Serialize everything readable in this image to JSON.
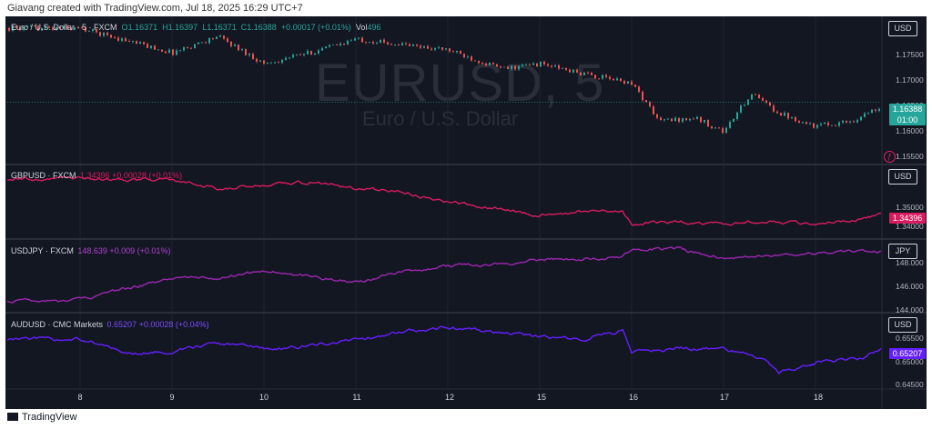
{
  "header": {
    "credit": "Giavang created with TradingView.com, Jul 18, 2025 16:29 UTC+7"
  },
  "watermark": {
    "symbol": "EURUSD, 5",
    "description": "Euro / U.S. Dollar"
  },
  "footer": {
    "brand": "TradingView"
  },
  "colors": {
    "background": "#131722",
    "up": "#26a69a",
    "down": "#ef5350",
    "gbp": "#d81b60",
    "jpy": "#9c27b0",
    "aud": "#651fff",
    "grid": "#1f2330"
  },
  "panes": [
    {
      "label_prefix": "Euro / U.S. Dollar · 5 · FXCM",
      "ohlc": {
        "o": "1.16371",
        "h": "1.16397",
        "l": "1.16371",
        "c": "1.16388",
        "chg": "+0.00017 (+0.01%)",
        "vol": "496"
      },
      "unit": "USD",
      "price_tag": "1.16388",
      "time_tag": "01:00",
      "ticks": [
        "1.17500",
        "1.17000",
        "1.16500",
        "1.16000",
        "1.15500"
      ]
    },
    {
      "label_prefix": "GBPUSD · FXCM",
      "value": "1.34396 +0.00028 (+0.01%)",
      "unit": "USD",
      "price_tag": "1.34396",
      "ticks": [
        "1.35000",
        "1.34000"
      ]
    },
    {
      "label_prefix": "USDJPY · FXCM",
      "value": "148.639 +0.009 (+0.01%)",
      "unit": "JPY",
      "price_tag": "",
      "ticks": [
        "148.000",
        "146.000",
        "144.000"
      ]
    },
    {
      "label_prefix": "AUDUSD · CMC Markets",
      "value": "0.65207 +0.00028 (+0.04%)",
      "unit": "USD",
      "price_tag": "0.65207",
      "ticks": [
        "0.65500",
        "0.65000",
        "0.64500"
      ]
    }
  ],
  "chart_data": [
    {
      "type": "candlestick",
      "title": "Euro / U.S. Dollar · 5 · FXCM",
      "x_ticks": [
        "8",
        "9",
        "10",
        "11",
        "12",
        "15",
        "16",
        "17",
        "18"
      ],
      "ylim": [
        1.153,
        1.179
      ],
      "y_ticks": [
        1.175,
        1.17,
        1.165,
        1.16,
        1.155
      ],
      "x": [
        0,
        1,
        1.5,
        2,
        2.5,
        3,
        4,
        4.6,
        5,
        5.5,
        6,
        6.3,
        6.7,
        7,
        7.3,
        7.6,
        8,
        8.4,
        8.8
      ],
      "values": [
        1.1775,
        1.173,
        1.176,
        1.171,
        1.173,
        1.1755,
        1.1735,
        1.17,
        1.171,
        1.169,
        1.1675,
        1.1605,
        1.161,
        1.1585,
        1.1655,
        1.162,
        1.1595,
        1.1605,
        1.1639
      ]
    },
    {
      "type": "line",
      "title": "GBPUSD · FXCM",
      "x_ticks": [
        "8",
        "9",
        "10",
        "11",
        "12",
        "15",
        "16",
        "17",
        "18"
      ],
      "ylim": [
        1.337,
        1.358
      ],
      "y_ticks": [
        1.35,
        1.34
      ],
      "x": [
        0,
        1,
        1.5,
        2,
        2.5,
        3,
        3.5,
        4,
        4.5,
        5,
        5.5,
        5.9,
        6,
        6.5,
        7,
        7.4,
        8,
        8.5,
        8.8
      ],
      "values": [
        1.3545,
        1.354,
        1.3515,
        1.3525,
        1.3535,
        1.3515,
        1.3505,
        1.3475,
        1.3455,
        1.3435,
        1.3445,
        1.3445,
        1.3405,
        1.3415,
        1.3405,
        1.3415,
        1.3405,
        1.3425,
        1.344
      ]
    },
    {
      "type": "line",
      "title": "USDJPY · FXCM",
      "x_ticks": [
        "8",
        "9",
        "10",
        "11",
        "12",
        "15",
        "16",
        "17",
        "18"
      ],
      "ylim": [
        143.8,
        149.4
      ],
      "y_ticks": [
        148,
        146,
        144
      ],
      "x": [
        0,
        0.5,
        1,
        1.5,
        2,
        2.5,
        3,
        3.5,
        4,
        4.5,
        5,
        5.5,
        5.9,
        6,
        6.5,
        7,
        7.4,
        8,
        8.5,
        8.8
      ],
      "values": [
        144.6,
        145.6,
        146.3,
        146.4,
        147.0,
        146.6,
        146.0,
        147.0,
        147.4,
        147.5,
        147.9,
        148.0,
        148.2,
        148.8,
        148.8,
        148.0,
        148.3,
        148.5,
        148.6,
        148.64
      ]
    },
    {
      "type": "line",
      "title": "AUDUSD · CMC Markets",
      "x_ticks": [
        "8",
        "9",
        "10",
        "11",
        "12",
        "15",
        "16",
        "17",
        "18"
      ],
      "ylim": [
        0.643,
        0.6585
      ],
      "y_ticks": [
        0.655,
        0.65,
        0.645
      ],
      "x": [
        0,
        0.5,
        1,
        1.5,
        2,
        2.5,
        3,
        3.5,
        4,
        4.5,
        5,
        5.5,
        5.9,
        6,
        6.5,
        7,
        7.4,
        7.6,
        8,
        8.5,
        8.8
      ],
      "values": [
        0.6535,
        0.6505,
        0.651,
        0.6525,
        0.6515,
        0.652,
        0.6535,
        0.655,
        0.656,
        0.655,
        0.654,
        0.6535,
        0.6555,
        0.651,
        0.6515,
        0.6515,
        0.6495,
        0.6465,
        0.6485,
        0.6495,
        0.6521
      ]
    }
  ]
}
